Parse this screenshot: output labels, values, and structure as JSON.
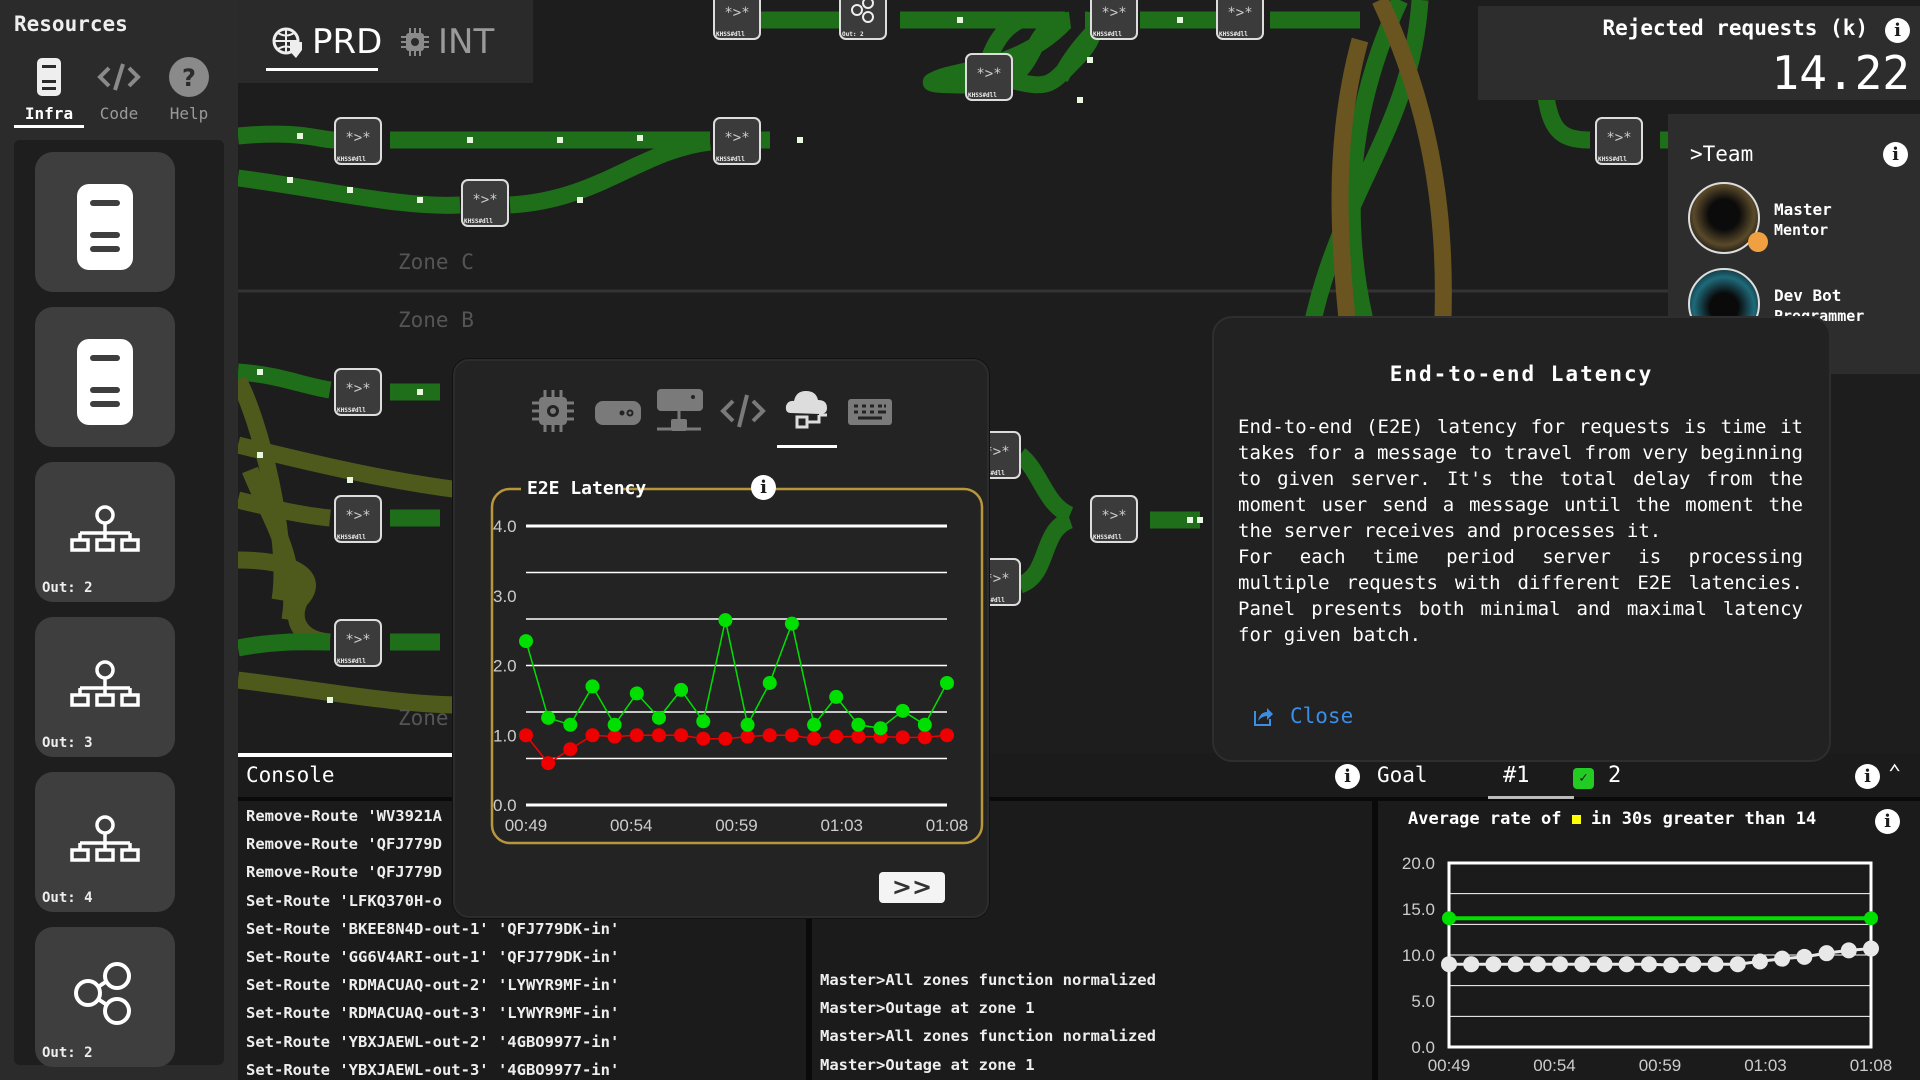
{
  "sidebar": {
    "title": "Resources",
    "tabs": [
      {
        "label": "Infra",
        "icon": "server-icon",
        "active": true
      },
      {
        "label": "Code",
        "icon": "code-icon"
      },
      {
        "label": "Help",
        "icon": "help-icon"
      }
    ],
    "cards": [
      {
        "icon": "server-icon"
      },
      {
        "icon": "server-icon"
      },
      {
        "icon": "hierarchy-icon",
        "out": "Out: 2"
      },
      {
        "icon": "hierarchy-icon",
        "out": "Out: 3"
      },
      {
        "icon": "hierarchy-icon",
        "out": "Out: 4"
      },
      {
        "icon": "share-icon",
        "out": "Out: 2"
      }
    ]
  },
  "env_tabs": [
    {
      "label": "PRD",
      "icon": "globe-shield-icon",
      "active": true
    },
    {
      "label": "INT",
      "icon": "chip-icon"
    }
  ],
  "map": {
    "zones": [
      "Zone C",
      "Zone B",
      "Zone"
    ],
    "node_label": "KHSS#dll",
    "node_out_label": "Out: 2",
    "node_glyph": "*>*"
  },
  "rejected": {
    "title": "Rejected requests (k)",
    "value": "14.22"
  },
  "team": {
    "title": ">Team",
    "members": [
      {
        "name": "Master",
        "role": "Mentor"
      },
      {
        "name": "Dev Bot",
        "role": "Programmer"
      }
    ]
  },
  "dialog": {
    "title": "End-to-end Latency",
    "body": "End-to-end (E2E) latency for requests is time it takes for a message to travel from very beginning to given server. It's the total delay from the moment user send a message until the moment the the server receives and processes it.\nFor each time period server is processing multiple requests with different E2E latencies. Panel presents both minimal and maximal latency for given batch.",
    "close_label": "Close"
  },
  "popup": {
    "icons": [
      "chip-icon",
      "device-icon",
      "network-icon",
      "code-icon",
      "cloud-network-icon",
      "keyboard-icon"
    ],
    "active_icon": 4,
    "next_label": ">>"
  },
  "console": {
    "title": "Console",
    "lines": [
      "Remove-Route 'WV3921A",
      "Remove-Route 'QFJ779D",
      "Remove-Route 'QFJ779D",
      "Set-Route 'LFKQ370H-o",
      "Set-Route 'BKEE8N4D-out-1' 'QFJ779DK-in'",
      "Set-Route 'GG6V4ARI-out-1' 'QFJ779DK-in'",
      "Set-Route 'RDMACUAQ-out-2' 'LYWYR9MF-in'",
      "Set-Route 'RDMACUAQ-out-3' 'LYWYR9MF-in'",
      "Set-Route 'YBXJAEWL-out-2' '4GBO9977-in'",
      "Set-Route 'YBXJAEWL-out-3' '4GBO9977-in'"
    ]
  },
  "messages": [
    "Master>All zones function normalized",
    "Master>Outage at zone 1",
    "Master>All zones function normalized",
    "Master>Outage at zone 1"
  ],
  "goal": {
    "label": "Goal",
    "tabs": [
      {
        "label": "#1",
        "active": true
      },
      {
        "label": "2",
        "done": true
      }
    ],
    "title_pre": "Average rate of",
    "title_post": "in 30s greater than 14",
    "marker_color": "#ffff00"
  },
  "colors": {
    "max": "#00e000",
    "min": "#ee0000",
    "frame": "#b8963c",
    "link_green": "#1f6e1a",
    "link_olive": "#4e5a1c",
    "accent_blue": "#3a8ee6"
  },
  "chart_data": [
    {
      "type": "line",
      "title": "E2E Latency",
      "categories": [
        "00:49",
        "",
        "",
        "",
        "",
        "00:54",
        "",
        "",
        "",
        "",
        "00:59",
        "",
        "",
        "",
        "01:03",
        "",
        "",
        "",
        "",
        "01:08"
      ],
      "xticks": [
        "00:49",
        "00:54",
        "00:59",
        "01:03",
        "01:08"
      ],
      "yticks": [
        "4.0",
        "3.0",
        "2.0",
        "1.0",
        "0.0"
      ],
      "ylim": [
        0,
        4
      ],
      "grid": true,
      "series": [
        {
          "color": "#00e000",
          "values": [
            2.35,
            1.25,
            1.15,
            1.7,
            1.15,
            1.6,
            1.25,
            1.65,
            1.2,
            2.65,
            1.15,
            1.75,
            2.6,
            1.15,
            1.55,
            1.15,
            1.1,
            1.35,
            1.15,
            1.75
          ]
        },
        {
          "color": "#ee0000",
          "values": [
            1.0,
            0.6,
            0.8,
            1.0,
            0.98,
            1.0,
            1.0,
            1.0,
            0.95,
            0.95,
            0.98,
            1.0,
            1.0,
            0.95,
            0.98,
            0.98,
            0.98,
            0.97,
            0.97,
            1.0
          ]
        }
      ]
    },
    {
      "type": "line",
      "xticks": [
        "00:49",
        "00:54",
        "00:59",
        "01:03",
        "01:08"
      ],
      "yticks": [
        "20.0",
        "15.0",
        "10.0",
        "5.0",
        "0.0"
      ],
      "ylim": [
        0,
        20
      ],
      "grid": true,
      "threshold": 14,
      "series": [
        {
          "color": "#00e000",
          "values": [
            14,
            14
          ]
        },
        {
          "color": "#e8e8e8",
          "values": [
            9.0,
            9.0,
            9.0,
            9.0,
            9.0,
            9.0,
            9.0,
            9.0,
            9.0,
            9.0,
            8.9,
            9.0,
            9.0,
            9.0,
            9.3,
            9.6,
            9.8,
            10.2,
            10.5,
            10.7
          ]
        }
      ]
    }
  ]
}
